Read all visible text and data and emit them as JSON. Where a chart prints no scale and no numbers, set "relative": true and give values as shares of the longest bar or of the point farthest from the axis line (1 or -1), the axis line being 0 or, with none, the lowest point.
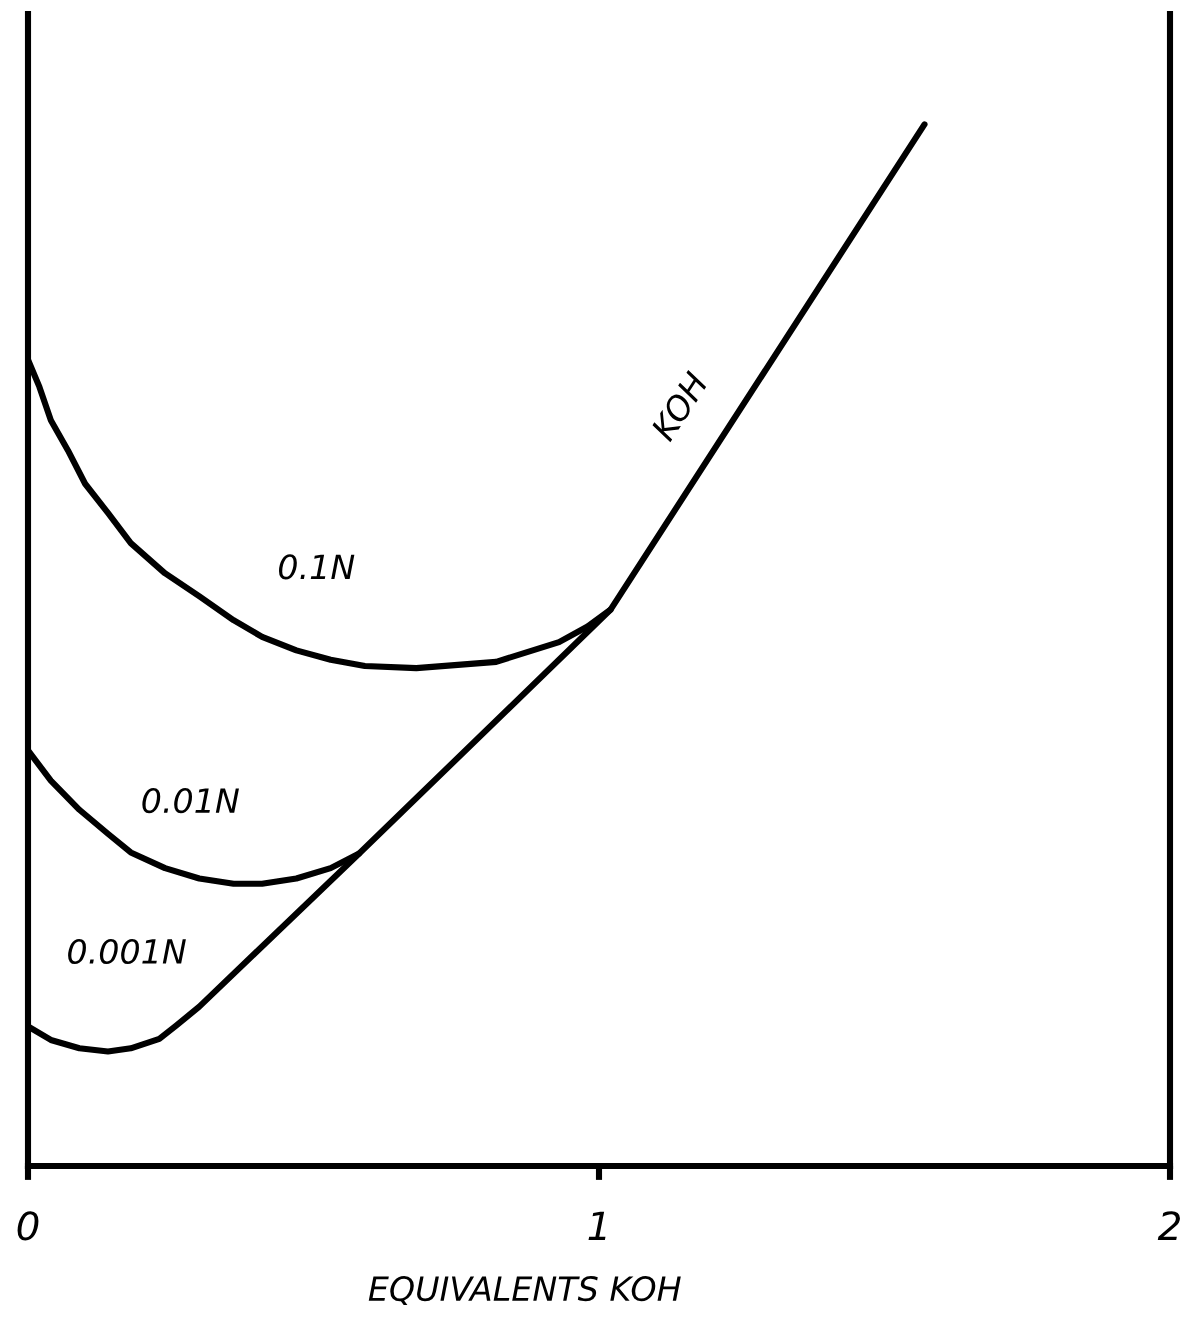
{
  "chart_data": {
    "type": "line",
    "xlabel": "EQUIVALENTS KOH",
    "relative": true,
    "xlim": [
      0,
      2
    ],
    "xticks": [
      0,
      1,
      2
    ],
    "tick_labels": "x",
    "line_style": "solid",
    "annotations": [
      {
        "text": "KOH",
        "x": 1.145,
        "y": 0.64
      }
    ],
    "series": [
      {
        "name": "0.1N",
        "color": "#000000",
        "x": [
          0,
          0.02,
          0.04,
          0.07,
          0.1,
          0.14,
          0.18,
          0.24,
          0.3,
          0.36,
          0.41,
          0.47,
          0.53,
          0.59,
          0.68,
          0.82,
          0.93,
          0.98,
          1.02
        ],
        "values": [
          0.774,
          0.748,
          0.716,
          0.687,
          0.655,
          0.627,
          0.598,
          0.569,
          0.547,
          0.524,
          0.508,
          0.495,
          0.486,
          0.48,
          0.478,
          0.484,
          0.503,
          0.518,
          0.534
        ]
      },
      {
        "name": "0.01N",
        "color": "#000000",
        "x": [
          0,
          0.04,
          0.09,
          0.14,
          0.18,
          0.24,
          0.3,
          0.36,
          0.41,
          0.47,
          0.53,
          0.58
        ],
        "values": [
          0.399,
          0.37,
          0.342,
          0.319,
          0.301,
          0.286,
          0.276,
          0.271,
          0.271,
          0.276,
          0.286,
          0.3
        ]
      },
      {
        "name": "0.001N",
        "color": "#000000",
        "x": [
          0,
          0.04,
          0.09,
          0.14,
          0.18,
          0.23,
          0.26,
          0.3,
          0.58,
          1.02,
          1.57
        ],
        "values": [
          0.134,
          0.121,
          0.113,
          0.11,
          0.113,
          0.122,
          0.135,
          0.153,
          0.3,
          0.534,
          1.0
        ]
      }
    ]
  }
}
